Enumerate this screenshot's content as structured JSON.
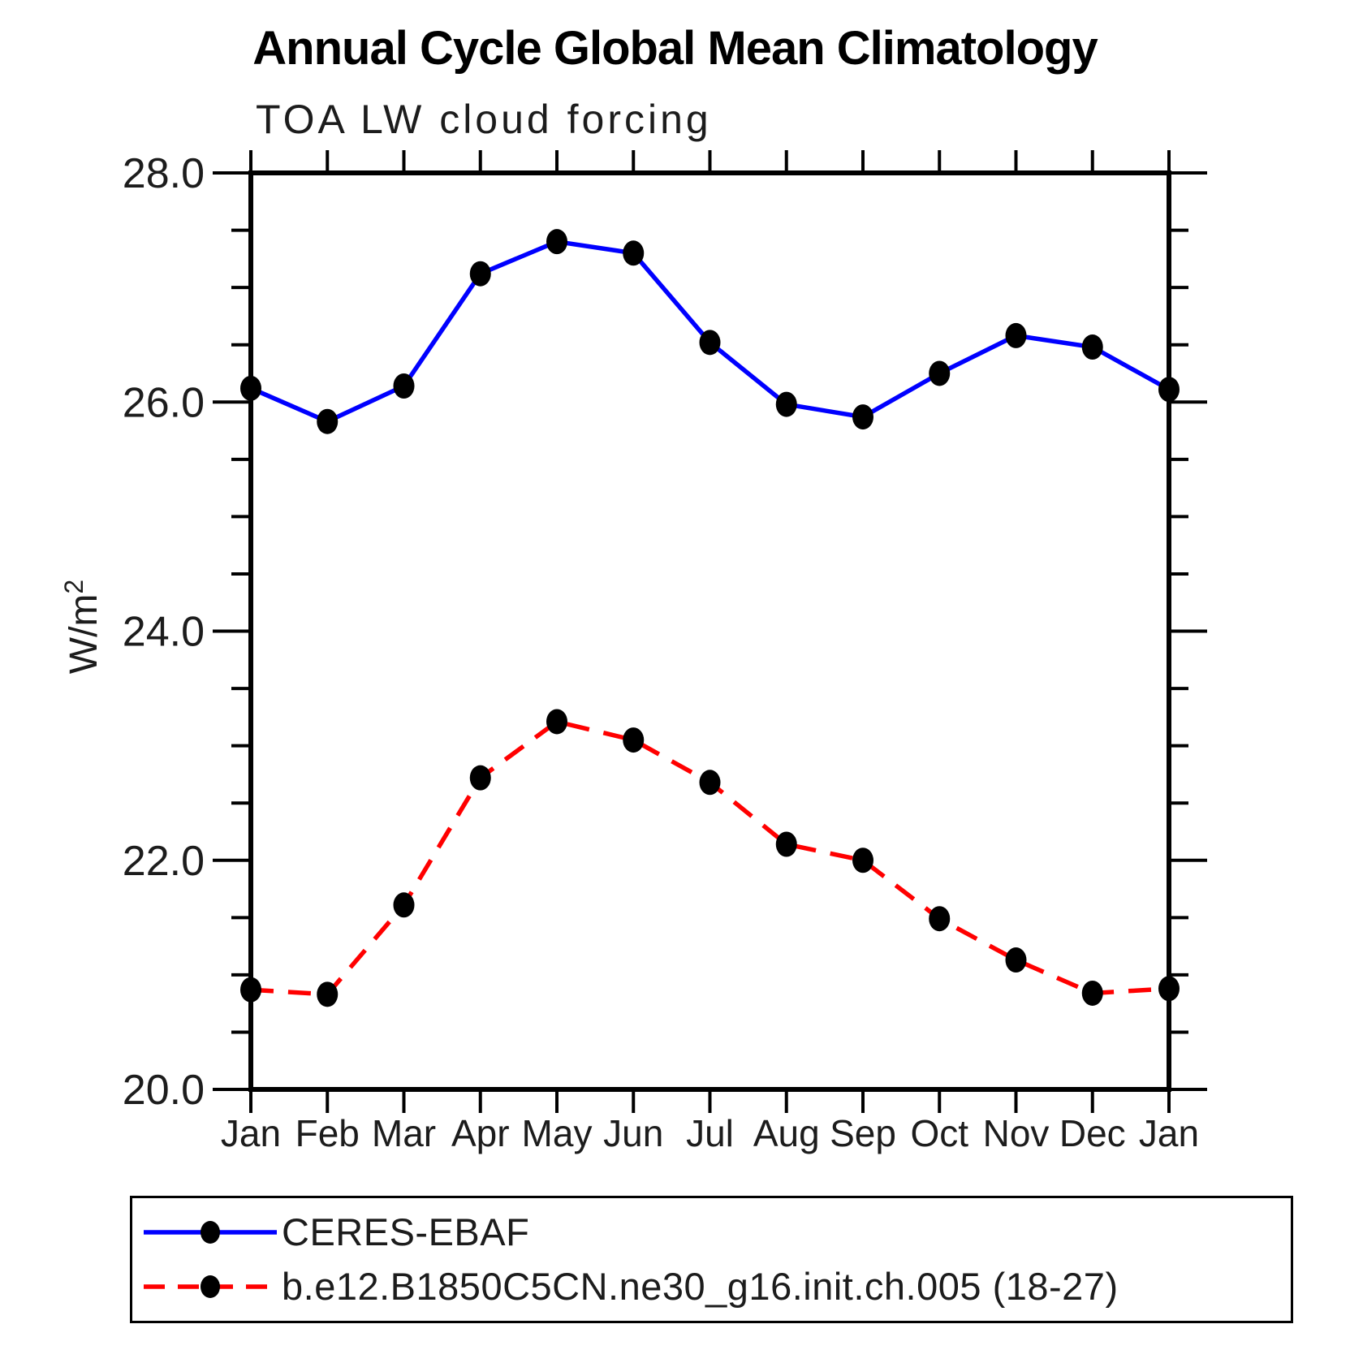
{
  "title": "Annual Cycle Global Mean Climatology",
  "subtitle": "TOA LW cloud forcing",
  "ylabel": {
    "text": "W/m",
    "sup": "2"
  },
  "chart_data": {
    "type": "line",
    "title": "Annual Cycle Global Mean Climatology",
    "subtitle": "TOA LW cloud forcing",
    "ylabel": "W/m^2",
    "categories": [
      "Jan",
      "Feb",
      "Mar",
      "Apr",
      "May",
      "Jun",
      "Jul",
      "Aug",
      "Sep",
      "Oct",
      "Nov",
      "Dec",
      "Jan"
    ],
    "series": [
      {
        "name": "CERES-EBAF",
        "color": "#0000ff",
        "line_style": "solid",
        "marker": "filled-dot",
        "marker_color": "#000000",
        "values": [
          26.12,
          25.83,
          26.14,
          27.12,
          27.4,
          27.3,
          26.52,
          25.98,
          25.87,
          26.25,
          26.58,
          26.48,
          26.11
        ]
      },
      {
        "name": "b.e12.B1850C5CN.ne30_g16.init.ch.005 (18-27)",
        "color": "#ff0000",
        "line_style": "dashed",
        "marker": "filled-dot",
        "marker_color": "#000000",
        "values": [
          20.87,
          20.83,
          21.61,
          22.72,
          23.21,
          23.05,
          22.68,
          22.14,
          22.0,
          21.49,
          21.13,
          20.84,
          20.88
        ]
      }
    ],
    "ylim": [
      20.0,
      28.0
    ],
    "ytick_major_step": 2.0,
    "ytick_minor_step": 0.5,
    "ytick_labels": [
      "28.0",
      "26.0",
      "24.0",
      "22.0",
      "20.0"
    ],
    "grid": "off",
    "legend_position": "bottom-left-box"
  }
}
